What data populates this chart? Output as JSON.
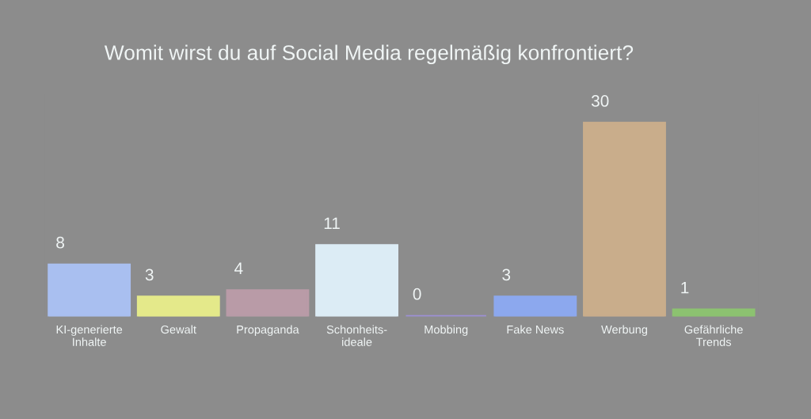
{
  "chart_data": {
    "type": "bar",
    "title": "Womit wirst du auf Social Media regelmäßig konfrontiert?",
    "categories": [
      "KI-generierte\nInhalte",
      "Gewalt",
      "Propaganda",
      "Schonheits-\nideale",
      "Mobbing",
      "Fake News",
      "Werbung",
      "Gefährliche\nTrends"
    ],
    "values": [
      8,
      3,
      4,
      11,
      0,
      3,
      30,
      1
    ],
    "colors": [
      "#a9bff0",
      "#e4e98a",
      "#b99ba7",
      "#dcecf5",
      "#9c90d4",
      "#8ca8ee",
      "#c9ad8b",
      "#8cc270"
    ],
    "data_labels": true,
    "grid": false,
    "legend": false
  }
}
